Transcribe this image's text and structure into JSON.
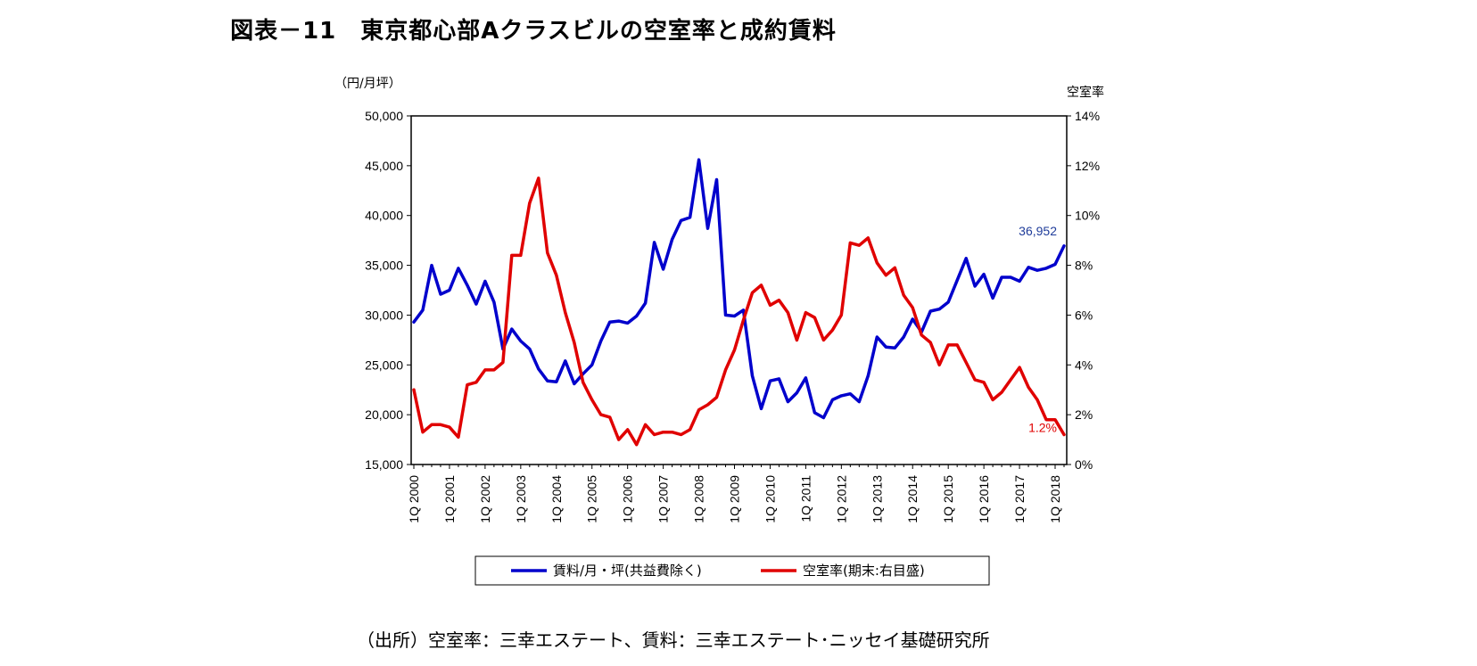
{
  "title": "図表－11　東京都心部Aクラスビルの空室率と成約賃料",
  "source": "（出所）空室率：三幸エステート、賃料：三幸エステート･ニッセイ基礎研究所",
  "colors": {
    "rent": "#0000cc",
    "vacancy": "#e00000",
    "rent_label": "#1f3c9a",
    "vacancy_label": "#e00000"
  },
  "chart_data": {
    "type": "line",
    "x_tick_labels": [
      "1Q 2000",
      "1Q 2001",
      "1Q 2002",
      "1Q 2003",
      "1Q 2004",
      "1Q 2005",
      "1Q 2006",
      "1Q 2007",
      "1Q 2008",
      "1Q 2009",
      "1Q 2010",
      "1Q 2011",
      "1Q 2012",
      "1Q 2013",
      "1Q 2014",
      "1Q 2015",
      "1Q 2016",
      "1Q 2017",
      "1Q 2018"
    ],
    "quarters_count": 74,
    "y_left": {
      "unit_label": "（円/月坪）",
      "min": 15000,
      "max": 50000,
      "step": 5000,
      "ticks": [
        "15,000",
        "20,000",
        "25,000",
        "30,000",
        "35,000",
        "40,000",
        "45,000",
        "50,000"
      ]
    },
    "y_right": {
      "unit_label": "空室率",
      "min": 0,
      "max": 14,
      "step": 2,
      "ticks": [
        "0%",
        "2%",
        "4%",
        "6%",
        "8%",
        "10%",
        "12%",
        "14%"
      ]
    },
    "grid": false,
    "legend_position": "bottom",
    "series": [
      {
        "name": "賃料/月・坪(共益費除く)",
        "axis": "left",
        "end_label": "36,952",
        "values": [
          29300,
          30500,
          35000,
          32100,
          32500,
          34700,
          33000,
          31100,
          33400,
          31300,
          26600,
          28600,
          27400,
          26600,
          24600,
          23400,
          23300,
          25400,
          23100,
          24100,
          25000,
          27400,
          29300,
          29400,
          29200,
          29900,
          31200,
          37300,
          34600,
          37600,
          39500,
          39800,
          45600,
          38700,
          43600,
          30000,
          29900,
          30500,
          23900,
          20600,
          23400,
          23600,
          21300,
          22200,
          23700,
          20200,
          19700,
          21500,
          21900,
          22100,
          21300,
          23900,
          27800,
          26800,
          26700,
          27800,
          29600,
          28300,
          30400,
          30600,
          31300,
          33500,
          35700,
          32900,
          34100,
          31700,
          33800,
          33800,
          33400,
          34800,
          34500,
          34700,
          35100,
          36952
        ]
      },
      {
        "name": "空室率(期末:右目盛)",
        "axis": "right",
        "end_label": "1.2%",
        "values": [
          3.0,
          1.3,
          1.6,
          1.6,
          1.5,
          1.1,
          3.2,
          3.3,
          3.8,
          3.8,
          4.1,
          8.4,
          8.4,
          10.5,
          11.5,
          8.5,
          7.6,
          6.1,
          4.9,
          3.3,
          2.6,
          2.0,
          1.9,
          1.0,
          1.4,
          0.8,
          1.6,
          1.2,
          1.3,
          1.3,
          1.2,
          1.4,
          2.2,
          2.4,
          2.7,
          3.8,
          4.6,
          5.8,
          6.9,
          7.2,
          6.4,
          6.6,
          6.1,
          5.0,
          6.1,
          5.9,
          5.0,
          5.4,
          6.0,
          8.9,
          8.8,
          9.1,
          8.1,
          7.6,
          7.9,
          6.8,
          6.3,
          5.2,
          4.9,
          4.0,
          4.8,
          4.8,
          4.1,
          3.4,
          3.3,
          2.6,
          2.9,
          3.4,
          3.9,
          3.1,
          2.6,
          1.8,
          1.8,
          1.2
        ]
      }
    ]
  }
}
